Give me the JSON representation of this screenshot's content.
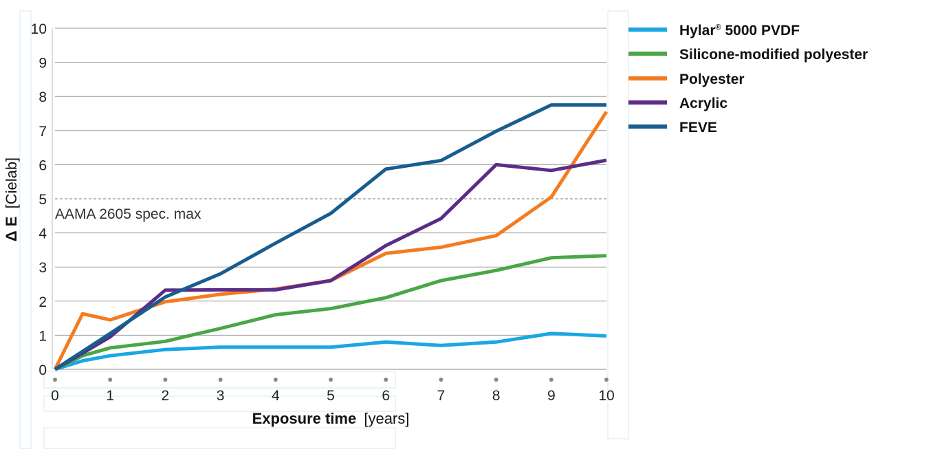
{
  "chart_data": {
    "type": "line",
    "xlabel": {
      "bold": "Exposure time",
      "unit": "[years]"
    },
    "ylabel": {
      "bold": "Δ E",
      "unit": "[Cielab]"
    },
    "xlim": [
      0,
      10
    ],
    "ylim": [
      0,
      10
    ],
    "x_ticks": [
      0,
      1,
      2,
      3,
      4,
      5,
      6,
      7,
      8,
      9,
      10
    ],
    "y_ticks": [
      0,
      1,
      2,
      3,
      4,
      5,
      6,
      7,
      8,
      9,
      10
    ],
    "grid": "horizontal",
    "legend_position": "top-right",
    "reference_line": {
      "y": 5,
      "label": "AAMA 2605 spec. max",
      "style": "dashed"
    },
    "series": [
      {
        "name": "Hylar® 5000 PVDF",
        "name_main": "Hylar",
        "name_sup": "®",
        "name_rest": " 5000 PVDF",
        "color": "#1aa7e4",
        "x": [
          0,
          0.5,
          1,
          2,
          3,
          4,
          5,
          6,
          7,
          8,
          9,
          10
        ],
        "y": [
          0,
          0.25,
          0.4,
          0.58,
          0.65,
          0.65,
          0.65,
          0.8,
          0.7,
          0.8,
          1.05,
          0.98
        ]
      },
      {
        "name": "Silicone-modified polyester",
        "color": "#4aa646",
        "x": [
          0,
          0.5,
          1,
          2,
          3,
          4,
          5,
          6,
          7,
          8,
          9,
          10
        ],
        "y": [
          0,
          0.4,
          0.63,
          0.82,
          1.2,
          1.6,
          1.78,
          2.1,
          2.6,
          2.9,
          3.27,
          3.33
        ]
      },
      {
        "name": "Polyester",
        "color": "#f47b20",
        "x": [
          0,
          0.5,
          1,
          2,
          3,
          4,
          5,
          6,
          7,
          8,
          9,
          10
        ],
        "y": [
          0,
          1.63,
          1.45,
          1.98,
          2.2,
          2.35,
          2.6,
          3.4,
          3.58,
          3.92,
          5.05,
          7.55
        ]
      },
      {
        "name": "Acrylic",
        "color": "#5b2d86",
        "x": [
          0,
          1,
          2,
          3,
          4,
          5,
          6,
          7,
          8,
          9,
          10
        ],
        "y": [
          0,
          0.95,
          2.32,
          2.33,
          2.33,
          2.6,
          3.63,
          4.42,
          6.0,
          5.83,
          6.13
        ]
      },
      {
        "name": "FEVE",
        "color": "#175d8e",
        "x": [
          0,
          1,
          2,
          3,
          4,
          5,
          6,
          7,
          8,
          9,
          10
        ],
        "y": [
          0,
          1.05,
          2.12,
          2.8,
          3.7,
          4.57,
          5.87,
          6.12,
          6.98,
          7.75,
          7.75
        ]
      }
    ]
  }
}
